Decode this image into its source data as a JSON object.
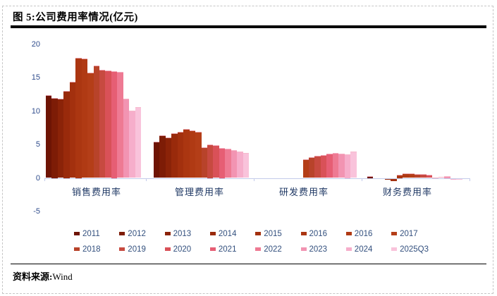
{
  "figure": {
    "title": "图 5:公司费用率情况(亿元)",
    "source_label": "资料来源:",
    "source_value": "Wind"
  },
  "chart_data": {
    "type": "bar",
    "title": "公司费用率情况(亿元)",
    "unit": "亿元",
    "grid": false,
    "legend_position": "bottom",
    "series_labels": [
      "2011",
      "2012",
      "2013",
      "2014",
      "2015",
      "2016",
      "2016",
      "2017",
      "2018",
      "2019",
      "2020",
      "2021",
      "2022",
      "2023",
      "2024",
      "2025Q3"
    ],
    "series_colors": [
      "#6e1404",
      "#7d1c06",
      "#8b2308",
      "#992a0b",
      "#a3300e",
      "#ab3611",
      "#b03a14",
      "#b43e18",
      "#b8432a",
      "#c74a40",
      "#d95158",
      "#e65e74",
      "#ee7a93",
      "#f294b2",
      "#f6aecb",
      "#f9c3db"
    ],
    "groups": [
      {
        "category": "销售费用率",
        "values": [
          12.4,
          12.0,
          11.8,
          13.0,
          14.4,
          18.0,
          17.8,
          15.7,
          16.8,
          16.2,
          16.1,
          16.0,
          15.8,
          11.8,
          10.1,
          10.6
        ]
      },
      {
        "category": "管理费用率",
        "values": [
          5.4,
          6.4,
          6.1,
          6.7,
          6.9,
          7.3,
          7.1,
          6.9,
          4.6,
          5.0,
          4.9,
          4.5,
          4.4,
          4.2,
          3.9,
          3.7
        ]
      },
      {
        "category": "研发费用率",
        "values": [
          null,
          null,
          null,
          null,
          null,
          null,
          null,
          2.8,
          3.1,
          3.3,
          3.4,
          3.6,
          3.7,
          3.6,
          3.5,
          3.9
        ]
      },
      {
        "category": "财务费用率",
        "values": [
          0.25,
          0,
          0,
          -0.2,
          -0.45,
          0.5,
          0.7,
          0.65,
          0.55,
          0.55,
          0.45,
          0.05,
          0.2,
          0.25,
          -0.25,
          -0.15
        ]
      }
    ],
    "y_axis": {
      "min": -5,
      "max": 20,
      "ticks": [
        20,
        15,
        10,
        5,
        0,
        -5
      ]
    },
    "colors": {
      "axis_line": "#c3cbea",
      "y_tick_label": "#2f4c8c",
      "category_label": "#1f3864",
      "legend_text": "#33507e"
    }
  }
}
